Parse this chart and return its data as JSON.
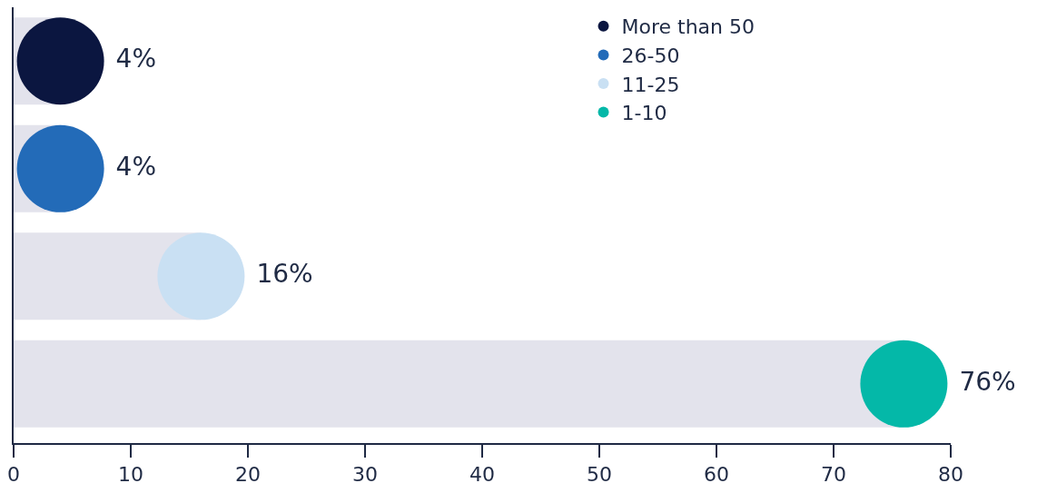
{
  "chart_data": {
    "type": "lollipop",
    "orientation": "horizontal",
    "categories": [
      null,
      null,
      null,
      null
    ],
    "series": [
      {
        "name": "More than 50",
        "color": "#0b1640",
        "values": [
          4,
          null,
          null,
          null
        ]
      },
      {
        "name": "26-50",
        "color": "#236bb8",
        "values": [
          null,
          4,
          null,
          null
        ]
      },
      {
        "name": "11-25",
        "color": "#c9e0f3",
        "values": [
          null,
          null,
          16,
          null
        ]
      },
      {
        "name": "1-10",
        "color": "#04b8a8",
        "values": [
          null,
          null,
          null,
          76
        ]
      }
    ],
    "value_labels": [
      "4%",
      "4%",
      "16%",
      "76%"
    ],
    "xlim": [
      0,
      80
    ],
    "xticks": [
      0,
      10,
      20,
      30,
      40,
      50,
      60,
      70,
      80
    ],
    "tick_labels": "x",
    "grid": false,
    "legend": "top right",
    "marker": "circle"
  }
}
